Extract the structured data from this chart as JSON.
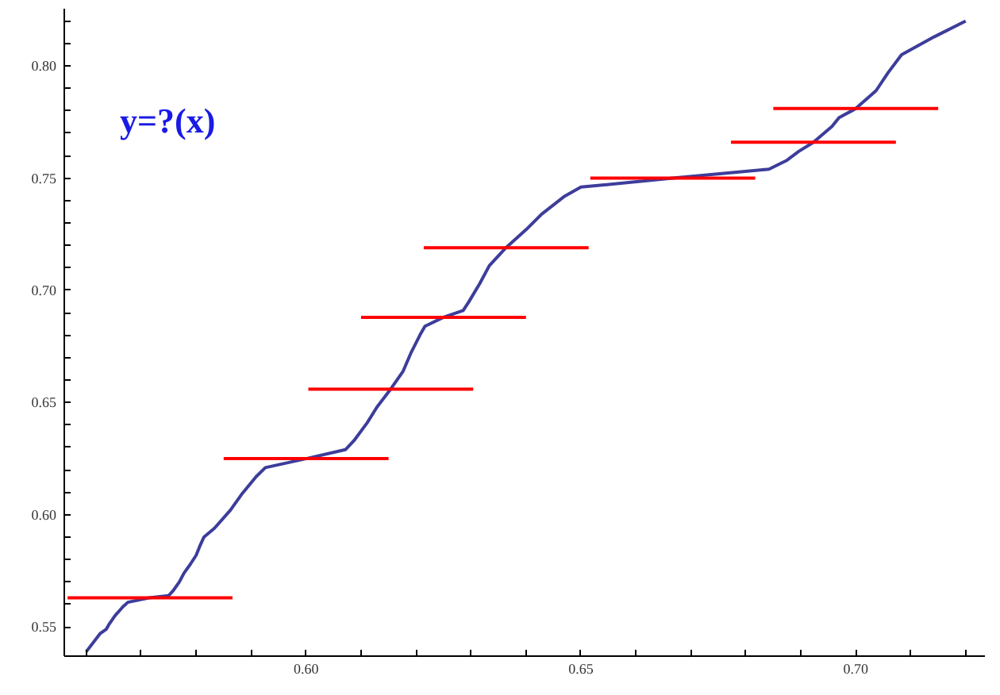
{
  "chart_data": {
    "type": "line",
    "annotations": [
      "y=?(x)"
    ],
    "xlim": [
      0.556,
      0.7235
    ],
    "ylim": [
      0.537,
      0.8255
    ],
    "xticks": [
      {
        "value": 0.56,
        "label": null
      },
      {
        "value": 0.57,
        "label": null
      },
      {
        "value": 0.58,
        "label": null
      },
      {
        "value": 0.59,
        "label": null
      },
      {
        "value": 0.6,
        "label": "0.60"
      },
      {
        "value": 0.61,
        "label": null
      },
      {
        "value": 0.62,
        "label": null
      },
      {
        "value": 0.63,
        "label": null
      },
      {
        "value": 0.64,
        "label": null
      },
      {
        "value": 0.65,
        "label": "0.65"
      },
      {
        "value": 0.66,
        "label": null
      },
      {
        "value": 0.67,
        "label": null
      },
      {
        "value": 0.68,
        "label": null
      },
      {
        "value": 0.69,
        "label": null
      },
      {
        "value": 0.7,
        "label": "0.70"
      },
      {
        "value": 0.71,
        "label": null
      },
      {
        "value": 0.72,
        "label": null
      }
    ],
    "yticks": [
      {
        "value": 0.55,
        "label": "0.55"
      },
      {
        "value": 0.56,
        "label": null
      },
      {
        "value": 0.57,
        "label": null
      },
      {
        "value": 0.58,
        "label": null
      },
      {
        "value": 0.59,
        "label": null
      },
      {
        "value": 0.6,
        "label": "0.60"
      },
      {
        "value": 0.61,
        "label": null
      },
      {
        "value": 0.62,
        "label": null
      },
      {
        "value": 0.63,
        "label": null
      },
      {
        "value": 0.64,
        "label": null
      },
      {
        "value": 0.65,
        "label": "0.65"
      },
      {
        "value": 0.66,
        "label": null
      },
      {
        "value": 0.67,
        "label": null
      },
      {
        "value": 0.68,
        "label": null
      },
      {
        "value": 0.69,
        "label": null
      },
      {
        "value": 0.7,
        "label": "0.70"
      },
      {
        "value": 0.71,
        "label": null
      },
      {
        "value": 0.72,
        "label": null
      },
      {
        "value": 0.73,
        "label": null
      },
      {
        "value": 0.74,
        "label": null
      },
      {
        "value": 0.75,
        "label": "0.75"
      },
      {
        "value": 0.76,
        "label": null
      },
      {
        "value": 0.77,
        "label": null
      },
      {
        "value": 0.78,
        "label": null
      },
      {
        "value": 0.79,
        "label": null
      },
      {
        "value": 0.8,
        "label": "0.80"
      },
      {
        "value": 0.81,
        "label": null
      },
      {
        "value": 0.82,
        "label": null
      }
    ],
    "marker": "none",
    "line_style": "solid",
    "series": [
      {
        "color": "#3d3d9b",
        "x": [
          0.56,
          0.5625,
          0.56364,
          0.5641,
          0.56522,
          0.56667,
          0.56757,
          0.57143,
          0.575,
          0.57576,
          0.57692,
          0.57778,
          0.57895,
          0.58,
          0.58065,
          0.5814,
          0.58333,
          0.58621,
          0.58824,
          0.59091,
          0.59259,
          0.6,
          0.60714,
          0.6087,
          0.61111,
          0.6129,
          0.61538,
          0.61765,
          0.61905,
          0.62069,
          0.62162,
          0.625,
          0.62857,
          0.62963,
          0.63158,
          0.63333,
          0.63636,
          0.64,
          0.64286,
          0.64706,
          0.65,
          0.66667,
          0.68421,
          0.6875,
          0.68966,
          0.69231,
          0.69565,
          0.69697,
          0.7,
          0.7037,
          0.70588,
          0.70833,
          0.71429,
          0.72
        ],
        "values": [
          0.539,
          0.547,
          0.549,
          0.551,
          0.555,
          0.559,
          0.561,
          0.563,
          0.564,
          0.566,
          0.57,
          0.574,
          0.578,
          0.582,
          0.586,
          0.59,
          0.594,
          0.602,
          0.609,
          0.617,
          0.621,
          0.625,
          0.629,
          0.633,
          0.641,
          0.648,
          0.656,
          0.664,
          0.672,
          0.68,
          0.684,
          0.688,
          0.691,
          0.695,
          0.703,
          0.711,
          0.719,
          0.727,
          0.734,
          0.742,
          0.746,
          0.75,
          0.754,
          0.758,
          0.762,
          0.766,
          0.773,
          0.777,
          0.781,
          0.789,
          0.797,
          0.805,
          0.813,
          0.82
        ]
      },
      {
        "color": "#ff0000",
        "x": [
          0.5566,
          0.5866
        ],
        "values": [
          0.563,
          0.563
        ]
      },
      {
        "color": "#ff0000",
        "x": [
          0.585,
          0.615
        ],
        "values": [
          0.625,
          0.625
        ]
      },
      {
        "color": "#ff0000",
        "x": [
          0.6004,
          0.6304
        ],
        "values": [
          0.656,
          0.656
        ]
      },
      {
        "color": "#ff0000",
        "x": [
          0.61,
          0.64
        ],
        "values": [
          0.688,
          0.688
        ]
      },
      {
        "color": "#ff0000",
        "x": [
          0.6214,
          0.6514
        ],
        "values": [
          0.719,
          0.719
        ]
      },
      {
        "color": "#ff0000",
        "x": [
          0.6517,
          0.6817
        ],
        "values": [
          0.75,
          0.75
        ]
      },
      {
        "color": "#ff0000",
        "x": [
          0.6773,
          0.7073
        ],
        "values": [
          0.766,
          0.766
        ]
      },
      {
        "color": "#ff0000",
        "x": [
          0.685,
          0.715
        ],
        "values": [
          0.781,
          0.781
        ]
      }
    ]
  }
}
